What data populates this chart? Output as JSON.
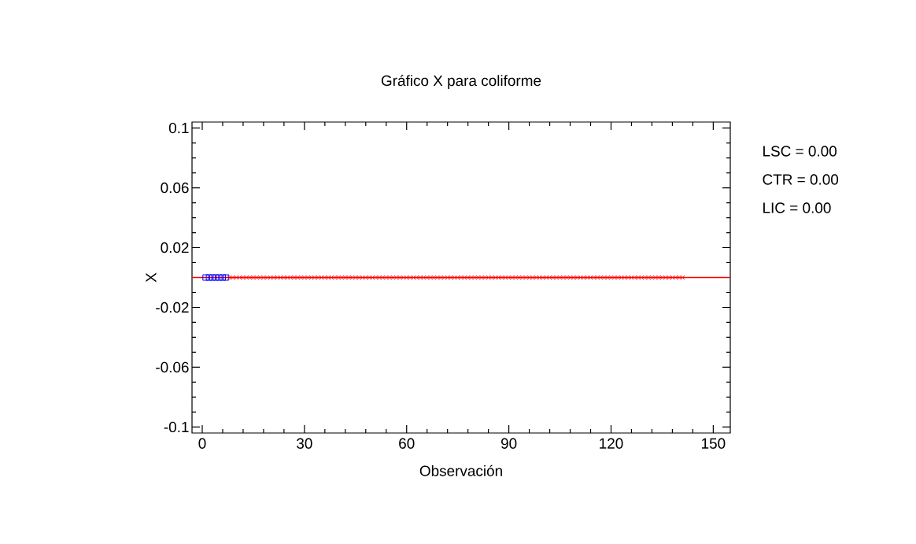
{
  "chart_data": {
    "type": "scatter",
    "title": "Gráfico X para coliforme",
    "xlabel": "Observación",
    "ylabel": "X",
    "xlim": [
      -3,
      155
    ],
    "ylim": [
      -0.104,
      0.104
    ],
    "xticks": [
      0,
      {
        "value": 6,
        "label": null
      },
      {
        "value": 12,
        "label": null
      },
      {
        "value": 18,
        "label": null
      },
      {
        "value": 24,
        "label": null
      },
      30,
      {
        "value": 36,
        "label": null
      },
      {
        "value": 42,
        "label": null
      },
      {
        "value": 48,
        "label": null
      },
      {
        "value": 54,
        "label": null
      },
      60,
      {
        "value": 66,
        "label": null
      },
      {
        "value": 72,
        "label": null
      },
      {
        "value": 78,
        "label": null
      },
      {
        "value": 84,
        "label": null
      },
      90,
      {
        "value": 96,
        "label": null
      },
      {
        "value": 102,
        "label": null
      },
      {
        "value": 108,
        "label": null
      },
      {
        "value": 114,
        "label": null
      },
      120,
      {
        "value": 126,
        "label": null
      },
      {
        "value": 132,
        "label": null
      },
      {
        "value": 138,
        "label": null
      },
      {
        "value": 144,
        "label": null
      },
      150
    ],
    "yticks": [
      {
        "value": -0.1,
        "label": "-0.1"
      },
      {
        "value": -0.09,
        "label": null
      },
      {
        "value": -0.08,
        "label": null
      },
      {
        "value": -0.07,
        "label": null
      },
      {
        "value": -0.06,
        "label": "-0.06"
      },
      {
        "value": -0.05,
        "label": null
      },
      {
        "value": -0.04,
        "label": null
      },
      {
        "value": -0.03,
        "label": null
      },
      {
        "value": -0.02,
        "label": "-0.02"
      },
      {
        "value": -0.01,
        "label": null
      },
      {
        "value": 0,
        "label": null
      },
      {
        "value": 0.01,
        "label": null
      },
      {
        "value": 0.02,
        "label": "0.02"
      },
      {
        "value": 0.03,
        "label": null
      },
      {
        "value": 0.04,
        "label": null
      },
      {
        "value": 0.05,
        "label": null
      },
      {
        "value": 0.06,
        "label": "0.06"
      },
      {
        "value": 0.07,
        "label": null
      },
      {
        "value": 0.08,
        "label": null
      },
      {
        "value": 0.09,
        "label": null
      },
      {
        "value": 0.1,
        "label": "0.1"
      }
    ],
    "grid": false,
    "series": [
      {
        "color": "#0000ff",
        "marker": "square",
        "x": [
          1,
          2,
          3,
          4,
          5,
          6,
          7
        ],
        "values": [
          0,
          0,
          0,
          0,
          0,
          0,
          0
        ]
      },
      {
        "color": "#ff0000",
        "marker": "cross",
        "x": [
          8,
          9,
          10,
          11,
          12,
          13,
          14,
          15,
          16,
          17,
          18,
          19,
          20,
          21,
          22,
          23,
          24,
          25,
          26,
          27,
          28,
          29,
          30,
          31,
          32,
          33,
          34,
          35,
          36,
          37,
          38,
          39,
          40,
          41,
          42,
          43,
          44,
          45,
          46,
          47,
          48,
          49,
          50,
          51,
          52,
          53,
          54,
          55,
          56,
          57,
          58,
          59,
          60,
          61,
          62,
          63,
          64,
          65,
          66,
          67,
          68,
          69,
          70,
          71,
          72,
          73,
          74,
          75,
          76,
          77,
          78,
          79,
          80,
          81,
          82,
          83,
          84,
          85,
          86,
          87,
          88,
          89,
          90,
          91,
          92,
          93,
          94,
          95,
          96,
          97,
          98,
          99,
          100,
          101,
          102,
          103,
          104,
          105,
          106,
          107,
          108,
          109,
          110,
          111,
          112,
          113,
          114,
          115,
          116,
          117,
          118,
          119,
          120,
          121,
          122,
          123,
          124,
          125,
          126,
          127,
          128,
          129,
          130,
          131,
          132,
          133,
          134,
          135,
          136,
          137,
          138,
          139,
          140,
          141
        ],
        "values": [
          0,
          0,
          0,
          0,
          0,
          0,
          0,
          0,
          0,
          0,
          0,
          0,
          0,
          0,
          0,
          0,
          0,
          0,
          0,
          0,
          0,
          0,
          0,
          0,
          0,
          0,
          0,
          0,
          0,
          0,
          0,
          0,
          0,
          0,
          0,
          0,
          0,
          0,
          0,
          0,
          0,
          0,
          0,
          0,
          0,
          0,
          0,
          0,
          0,
          0,
          0,
          0,
          0,
          0,
          0,
          0,
          0,
          0,
          0,
          0,
          0,
          0,
          0,
          0,
          0,
          0,
          0,
          0,
          0,
          0,
          0,
          0,
          0,
          0,
          0,
          0,
          0,
          0,
          0,
          0,
          0,
          0,
          0,
          0,
          0,
          0,
          0,
          0,
          0,
          0,
          0,
          0,
          0,
          0,
          0,
          0,
          0,
          0,
          0,
          0,
          0,
          0,
          0,
          0,
          0,
          0,
          0,
          0,
          0,
          0,
          0,
          0,
          0,
          0,
          0,
          0,
          0,
          0,
          0,
          0,
          0,
          0,
          0,
          0,
          0,
          0,
          0,
          0,
          0,
          0,
          0,
          0,
          0,
          0
        ]
      }
    ],
    "ref_lines": [
      {
        "axis": "y",
        "value": 0,
        "color": "#ff0000",
        "line_style": "solid"
      }
    ],
    "annotations": [
      "LSC = 0.00",
      "CTR = 0.00",
      "LIC = 0.00"
    ]
  }
}
